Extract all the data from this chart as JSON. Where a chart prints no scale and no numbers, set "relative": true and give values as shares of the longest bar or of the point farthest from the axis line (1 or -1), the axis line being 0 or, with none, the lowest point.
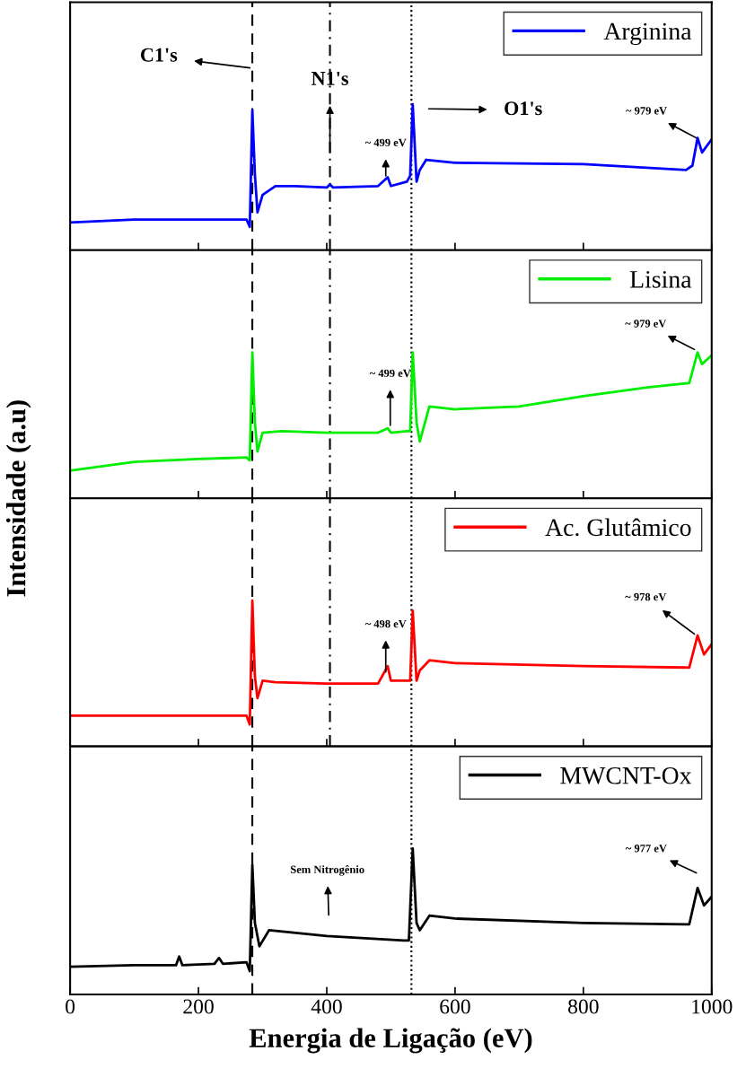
{
  "chart_data": [
    {
      "type": "line",
      "relative": true,
      "ylabel": "Intensidade (a.u)",
      "x": [
        0,
        100,
        200,
        275,
        280,
        284,
        288,
        292,
        300,
        320,
        350,
        400,
        405,
        410,
        480,
        495,
        500,
        525,
        530,
        534,
        540,
        545,
        555,
        600,
        800,
        960,
        970,
        978,
        985,
        1000
      ],
      "xlim": [
        0,
        1000
      ],
      "xticks": [
        0,
        200,
        400,
        600,
        800,
        1000
      ],
      "tick_labels": false,
      "legend": "top right",
      "series": [
        {
          "name": "Arginina",
          "color": "#0000ff",
          "values": [
            0.19,
            0.21,
            0.21,
            0.21,
            0.16,
            0.96,
            0.52,
            0.26,
            0.38,
            0.44,
            0.44,
            0.43,
            0.45,
            0.43,
            0.44,
            0.5,
            0.44,
            0.47,
            0.51,
            1.0,
            0.47,
            0.55,
            0.62,
            0.6,
            0.59,
            0.55,
            0.58,
            0.77,
            0.67,
            0.76
          ]
        }
      ],
      "ref_lines": [
        {
          "axis": "x",
          "value": 284,
          "line_style": "dashed"
        },
        {
          "axis": "x",
          "value": 405,
          "line_style": "dashdot"
        },
        {
          "axis": "x",
          "value": 532,
          "line_style": "dotted"
        }
      ],
      "annotations": [
        {
          "text": "C1's",
          "x": 280,
          "y": 1.25
        },
        {
          "text": "N1's",
          "x": 405,
          "y": 0.67
        },
        "O1's",
        "~ 499 eV",
        {
          "text": "~ 979 eV",
          "x": 976,
          "y": 0.77
        }
      ]
    },
    {
      "type": "line",
      "relative": true,
      "x": [
        0,
        100,
        200,
        275,
        280,
        284,
        288,
        292,
        300,
        330,
        400,
        480,
        495,
        500,
        525,
        530,
        534,
        540,
        545,
        560,
        600,
        700,
        800,
        900,
        965,
        978,
        985,
        1000
      ],
      "xlim": [
        0,
        1000
      ],
      "xticks": [
        0,
        200,
        400,
        600,
        800,
        1000
      ],
      "tick_labels": false,
      "legend": "top right",
      "series": [
        {
          "name": "Lisina",
          "color": "#00ee00",
          "values": [
            0.19,
            0.25,
            0.27,
            0.28,
            0.26,
            1.0,
            0.52,
            0.32,
            0.45,
            0.46,
            0.45,
            0.45,
            0.48,
            0.45,
            0.46,
            0.46,
            1.0,
            0.52,
            0.39,
            0.63,
            0.61,
            0.63,
            0.7,
            0.76,
            0.79,
            1.0,
            0.92,
            0.98
          ]
        }
      ],
      "ref_lines": [
        {
          "axis": "x",
          "value": 284,
          "line_style": "dashed"
        },
        {
          "axis": "x",
          "value": 405,
          "line_style": "dashdot"
        },
        {
          "axis": "x",
          "value": 532,
          "line_style": "dotted"
        }
      ],
      "annotations": [
        {
          "text": "~ 499 eV",
          "x": 499,
          "y": 0.5
        },
        {
          "text": "~ 979 eV",
          "x": 973,
          "y": 1.02
        }
      ]
    },
    {
      "type": "line",
      "relative": true,
      "x": [
        0,
        200,
        275,
        280,
        284,
        288,
        292,
        300,
        320,
        400,
        480,
        495,
        500,
        525,
        530,
        534,
        540,
        545,
        560,
        600,
        800,
        965,
        978,
        988,
        1000
      ],
      "xlim": [
        0,
        1000
      ],
      "xticks": [
        0,
        200,
        400,
        600,
        800,
        1000
      ],
      "tick_labels": false,
      "legend": "top right",
      "series": [
        {
          "name": "Ac. Glutâmico",
          "color": "#ff0000",
          "values": [
            0.21,
            0.21,
            0.21,
            0.15,
            1.0,
            0.48,
            0.33,
            0.45,
            0.44,
            0.43,
            0.43,
            0.55,
            0.45,
            0.45,
            0.45,
            0.93,
            0.45,
            0.52,
            0.59,
            0.57,
            0.55,
            0.54,
            0.76,
            0.63,
            0.7
          ]
        }
      ],
      "ref_lines": [
        {
          "axis": "x",
          "value": 284,
          "line_style": "dashed"
        },
        {
          "axis": "x",
          "value": 405,
          "line_style": "dashdot"
        },
        {
          "axis": "x",
          "value": 532,
          "line_style": "dotted"
        }
      ],
      "annotations": [
        "~ 498 eV",
        {
          "text": "~ 978 eV",
          "x": 973,
          "y": 0.77
        }
      ]
    },
    {
      "type": "line",
      "relative": true,
      "xlabel": "Energia de Ligação (eV)",
      "x": [
        0,
        100,
        165,
        170,
        175,
        225,
        232,
        238,
        275,
        280,
        284,
        288,
        295,
        310,
        400,
        520,
        528,
        534,
        540,
        545,
        560,
        600,
        800,
        965,
        978,
        988,
        1000
      ],
      "xlim": [
        0,
        1000
      ],
      "xticks": [
        0,
        200,
        400,
        600,
        800,
        1000
      ],
      "legend": "top right",
      "series": [
        {
          "name": "MWCNT-Ox",
          "color": "#000000",
          "values": [
            0.19,
            0.2,
            0.2,
            0.26,
            0.2,
            0.21,
            0.25,
            0.21,
            0.22,
            0.16,
            0.89,
            0.49,
            0.33,
            0.44,
            0.4,
            0.37,
            0.37,
            1.0,
            0.49,
            0.44,
            0.54,
            0.52,
            0.49,
            0.48,
            0.73,
            0.61,
            0.67
          ]
        }
      ],
      "ref_lines": [
        {
          "axis": "x",
          "value": 284,
          "line_style": "dashed"
        },
        {
          "axis": "x",
          "value": 532,
          "line_style": "dotted"
        }
      ],
      "annotations": [
        "Sem Nitrogênio",
        "~ 977 eV"
      ]
    }
  ]
}
